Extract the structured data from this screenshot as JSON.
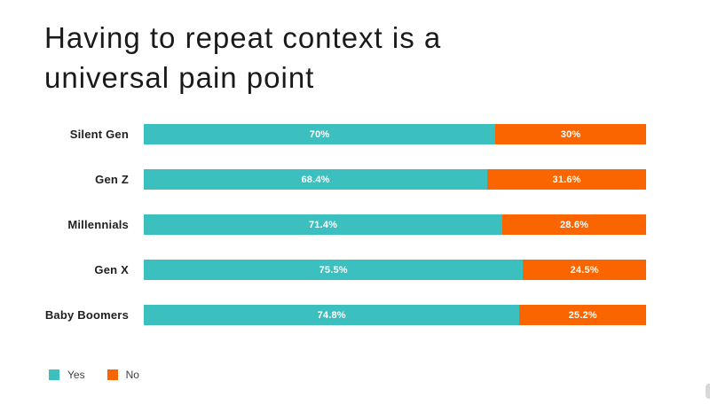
{
  "title": {
    "lines": [
      "Having to repeat context is a",
      "universal pain point"
    ]
  },
  "chart_data": {
    "type": "bar",
    "orientation": "horizontal",
    "stacked": true,
    "title": "Having to repeat context is a universal pain point",
    "categories": [
      "Silent Gen",
      "Gen Z",
      "Millennials",
      "Gen X",
      "Baby Boomers"
    ],
    "series": [
      {
        "name": "Yes",
        "color": "#3bbfbf",
        "values": [
          70,
          68.4,
          71.4,
          75.5,
          74.8
        ],
        "data_labels": [
          "70%",
          "68.4%",
          "71.4%",
          "75.5%",
          "74.8%"
        ]
      },
      {
        "name": "No",
        "color": "#fb6500",
        "values": [
          30,
          31.6,
          28.6,
          24.5,
          25.2
        ],
        "data_labels": [
          "30%",
          "31.6%",
          "28.6%",
          "24.5%",
          "25.2%"
        ]
      }
    ],
    "value_unit": "%",
    "xlim": [
      0,
      100
    ],
    "grid": false,
    "legend_position": "bottom-left",
    "data_label_color": "#ffffff"
  },
  "colors": {
    "background": "#ffffff",
    "title_text": "#1a1a1a",
    "category_text": "#1f1f1f",
    "legend_text": "#404040",
    "scrollbar": "#d8d8d8"
  }
}
